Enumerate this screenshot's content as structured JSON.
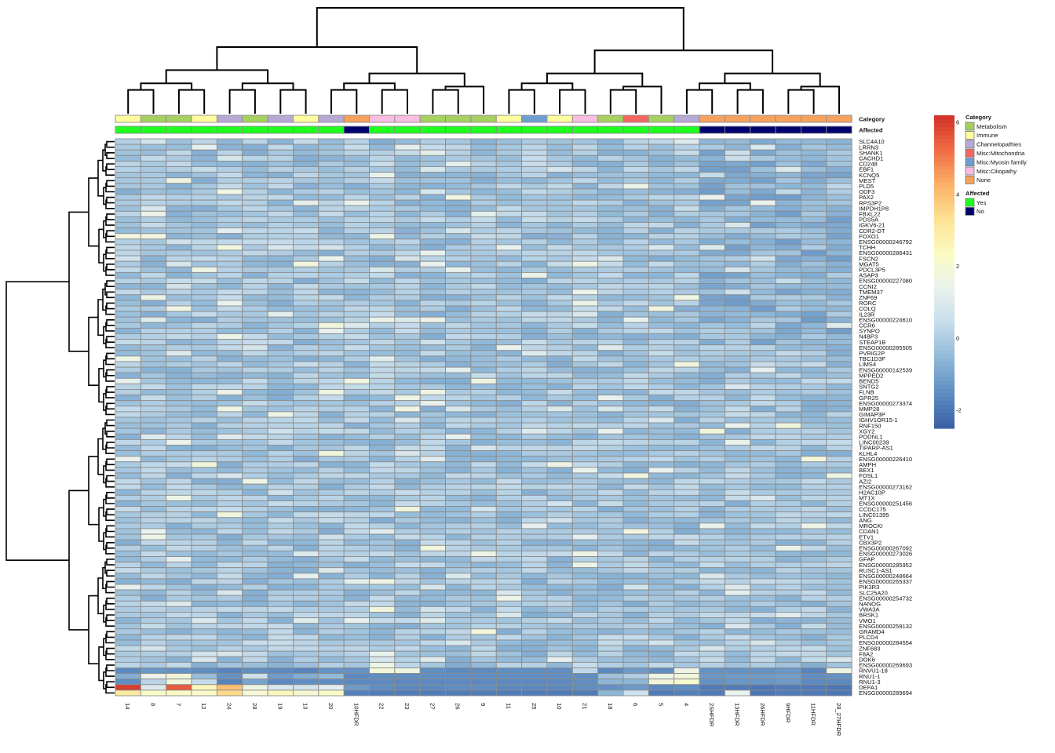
{
  "chart_data": {
    "type": "heatmap",
    "columns": [
      "14",
      "8",
      "7",
      "12",
      "24",
      "28",
      "19",
      "13",
      "20",
      "10HFDR",
      "22",
      "23",
      "27",
      "26",
      "9",
      "11",
      "25",
      "10",
      "21",
      "18",
      "6",
      "5",
      "4",
      "2SHFDR",
      "13HFDR",
      "26HFDR",
      "9HFDR",
      "11HFDR",
      "28_27HFDR"
    ],
    "rows": [
      "SLC4A10",
      "LRRN3",
      "SHANK1",
      "CACHD1",
      "CD248",
      "EBF1",
      "KCNQ5",
      "MEST",
      "PLD5",
      "ODF3",
      "PAX2",
      "RPS3P2",
      "IMPDH1P8",
      "FBXL22",
      "PDS5A",
      "IGKV6-21",
      "CDR2-DT",
      "FOXO1",
      "ENSG00000246792",
      "TCHH",
      "ENSG00000286431",
      "FSCN2",
      "MGAT5",
      "PDCL3P5",
      "ASAP3",
      "ENSG00000227080",
      "CCNI2",
      "TMEM37",
      "ZNF69",
      "RORC",
      "COLQ",
      "IL23R",
      "ENSG00000224610",
      "CCR6",
      "SYNPO",
      "N4BP3",
      "STEAP1B",
      "ENSG00000285505",
      "PVRIG2P",
      "TBC1D3F",
      "LIMS4",
      "ENSG00000142539",
      "MPPED2",
      "BEND5",
      "SNTG2",
      "FLNB",
      "GPR25",
      "ENSG00000273374",
      "MMP28",
      "GIMAP3P",
      "IGHV1OR15-1",
      "RNF150",
      "XGY2",
      "PODNL1",
      "LINC00239",
      "TIPARP-AS1",
      "KLHL4",
      "ENSG00000226410",
      "AMPH",
      "BEX1",
      "FOSL1",
      "AZI2",
      "ENSG00000273162",
      "H2AC10P",
      "MT1X",
      "ENSG00000251456",
      "CCDC175",
      "LINC01395",
      "ANG",
      "MROCKI",
      "CDAN1",
      "ETV1",
      "CBX3P2",
      "ENSG00000267092",
      "ENSG00000273026",
      "GFAP",
      "ENSG00000285952",
      "RUSC1-AS1",
      "ENSG00000248664",
      "ENSG00000265337",
      "PIK3R3",
      "SLC25A20",
      "ENSG00000254732",
      "NANOG",
      "VWA3A",
      "BRSK1",
      "VMO1",
      "ENSG00000259132",
      "GRAMD4",
      "PLCD4",
      "ENSG00000284554",
      "ZNF683",
      "F8A2",
      "DOK6",
      "ENSG00000269693",
      "RNVU1-18",
      "RNU1-1",
      "RNU1-3",
      "DEFA1",
      "ENSG00000289694"
    ],
    "annotations": [
      {
        "name": "Category",
        "values": [
          "Immune",
          "Metabolism",
          "Metabolism",
          "Immune",
          "Channelopathies",
          "Metabolism",
          "Channelopathies",
          "Immune",
          "Channelopathies",
          "None",
          "Misc:Ciliopathy",
          "Misc:Ciliopathy",
          "Metabolism",
          "Metabolism",
          "Metabolism",
          "Immune",
          "Misc:Myosin family",
          "Immune",
          "Misc:Ciliopathy",
          "Metabolism",
          "Misc:Mitochondria",
          "Metabolism",
          "Channelopathies",
          "None",
          "None",
          "None",
          "None",
          "None",
          "None"
        ]
      },
      {
        "name": "Affected",
        "values": [
          "Yes",
          "Yes",
          "Yes",
          "Yes",
          "Yes",
          "Yes",
          "Yes",
          "Yes",
          "Yes",
          "No",
          "Yes",
          "Yes",
          "Yes",
          "Yes",
          "Yes",
          "Yes",
          "Yes",
          "Yes",
          "Yes",
          "Yes",
          "Yes",
          "Yes",
          "Yes",
          "No",
          "No",
          "No",
          "No",
          "No",
          "No"
        ]
      }
    ],
    "legend": {
      "category_title": "Category",
      "category_items": [
        {
          "label": "Metabolism",
          "color": "#a6d05f"
        },
        {
          "label": "Immune",
          "color": "#fffb9f"
        },
        {
          "label": "Channelopathies",
          "color": "#b7a9d6"
        },
        {
          "label": "Misc:Mitochondria",
          "color": "#f46660"
        },
        {
          "label": "Misc:Myosin family",
          "color": "#6c9fd0"
        },
        {
          "label": "Misc:Ciliopathy",
          "color": "#f8bde0"
        },
        {
          "label": "None",
          "color": "#f7a25c"
        }
      ],
      "affected_title": "Affected",
      "affected_items": [
        {
          "label": "Yes",
          "color": "#1eff1e"
        },
        {
          "label": "No",
          "color": "#00006e"
        }
      ],
      "scale_ticks": [
        "6",
        "4",
        "2",
        "0",
        "-2"
      ],
      "scale_values": [
        6,
        4,
        2,
        0,
        -2
      ],
      "scale_range": [
        -2.5,
        6.2
      ]
    },
    "colors": {
      "scale": [
        "#3a5fa4",
        "#5d8cc2",
        "#8fb8d8",
        "#c6dceb",
        "#e9f2ee",
        "#fbfbc4",
        "#fde393",
        "#fbb168",
        "#f06c44",
        "#d13128"
      ]
    },
    "values_note": "Cell values are estimated z-scores read from color intensity.",
    "values": []
  }
}
